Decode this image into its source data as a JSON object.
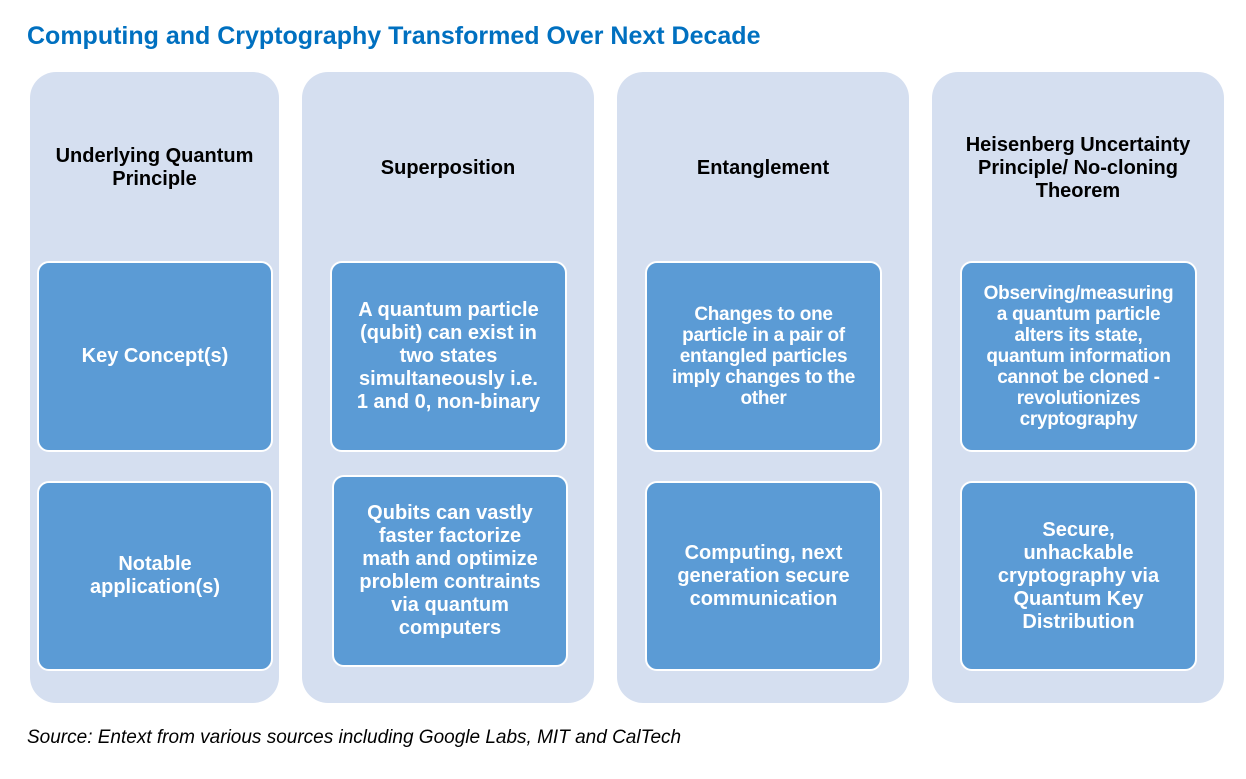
{
  "title": "Computing and Cryptography Transformed Over Next Decade",
  "columns": [
    {
      "header": "Underlying Quantum\nPrinciple",
      "concept": "Key Concept(s)",
      "application": "Notable\napplication(s)"
    },
    {
      "header": "Superposition",
      "concept": "A quantum particle\n(qubit) can exist in\ntwo states\nsimultaneously i.e.\n1 and 0, non-binary",
      "application": "Qubits can vastly\nfaster factorize\nmath and optimize\nproblem contraints\nvia quantum\ncomputers"
    },
    {
      "header": "Entanglement",
      "concept": "Changes to one\nparticle in a pair of\nentangled particles\nimply changes to the\nother",
      "application": "Computing, next\ngeneration secure\ncommunication"
    },
    {
      "header": "Heisenberg Uncertainty\nPrinciple/ No-cloning\nTheorem",
      "concept": "Observing/measuring\na quantum particle\nalters its  state,\nquantum information\ncannot be cloned -\nrevolutionizes\ncryptography",
      "application": "Secure,\nunhackable\ncryptography via\nQuantum Key\nDistribution"
    }
  ],
  "source": "Source: Entext from various sources including Google Labs, MIT and CalTech",
  "colors": {
    "title": "#0070c0",
    "column_background": "#d5dff0",
    "box_fill": "#5b9bd5",
    "box_text": "#ffffff"
  }
}
